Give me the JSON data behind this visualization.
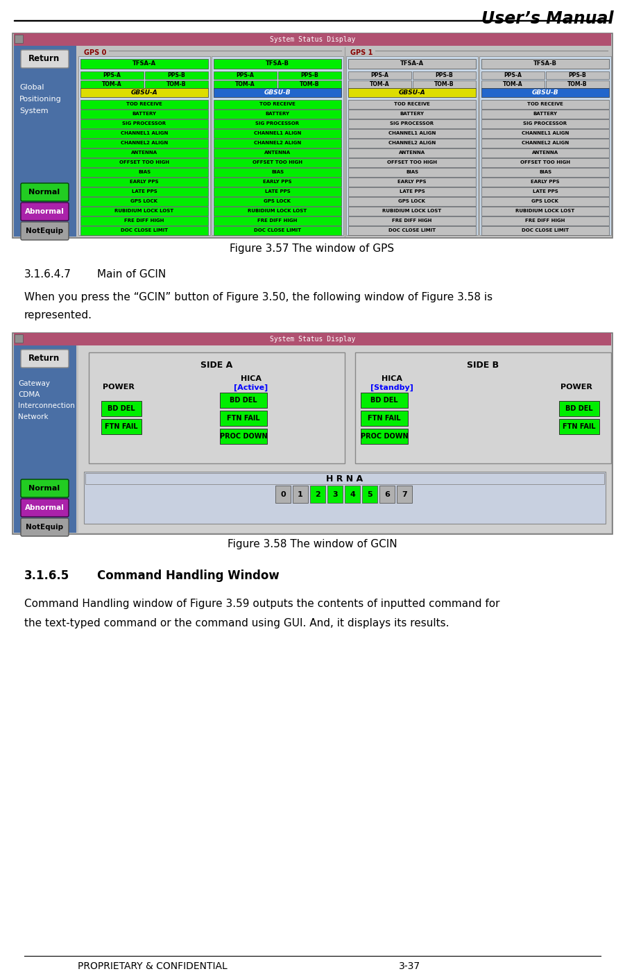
{
  "title_header": "User’s Manual",
  "footer_left": "PROPRIETARY & CONFIDENTIAL",
  "footer_right": "3-37",
  "fig_caption_1": "Figure 3.57 The window of GPS",
  "fig_caption_2": "Figure 3.58 The window of GCIN",
  "section_3164_num": "3.1.6.4.7",
  "section_3164_title": "Main of GCIN",
  "section_165_num": "3.1.6.5",
  "section_165_title": "Command Handling Window",
  "para1_line1": "When you press the “GCIN” button of Figure 3.50, the following window of Figure 3.58 is",
  "para1_line2": "represented.",
  "para2_line1": "Command Handling window of Figure 3.59 outputs the contents of inputted command for",
  "para2_line2": "the text-typed command or the command using GUI. And, it displays its results.",
  "bg_color": "#ffffff",
  "header_bar_color": "#b05070",
  "sidebar_color": "#4a6fa5",
  "normal_btn_color": "#22cc22",
  "abnormal_btn_color": "#aa22aa",
  "notequip_btn_color": "#a0a0a0",
  "green_cell": "#00ee00",
  "gray_cell": "#c0c0c0",
  "light_blue_panel": "#c8d8e8",
  "window_bg": "#c0c0c0",
  "main_panel_bg": "#c8c8c8",
  "status_items": [
    "TOD RECEIVE",
    "BATTERY",
    "SIG PROCESSOR",
    "CHANNEL1 ALIGN",
    "CHANNEL2 ALIGN",
    "ANTENNA",
    "OFFSET TOO HIGH",
    "BIAS",
    "EARLY PPS",
    "LATE PPS",
    "GPS LOCK",
    "RUBIDIUM LOCK LOST",
    "FRE DIFF HIGH",
    "DOC CLOSE LIMIT"
  ],
  "gbsu_a_color": "#dddd00",
  "gbsu_b_color": "#2266cc"
}
